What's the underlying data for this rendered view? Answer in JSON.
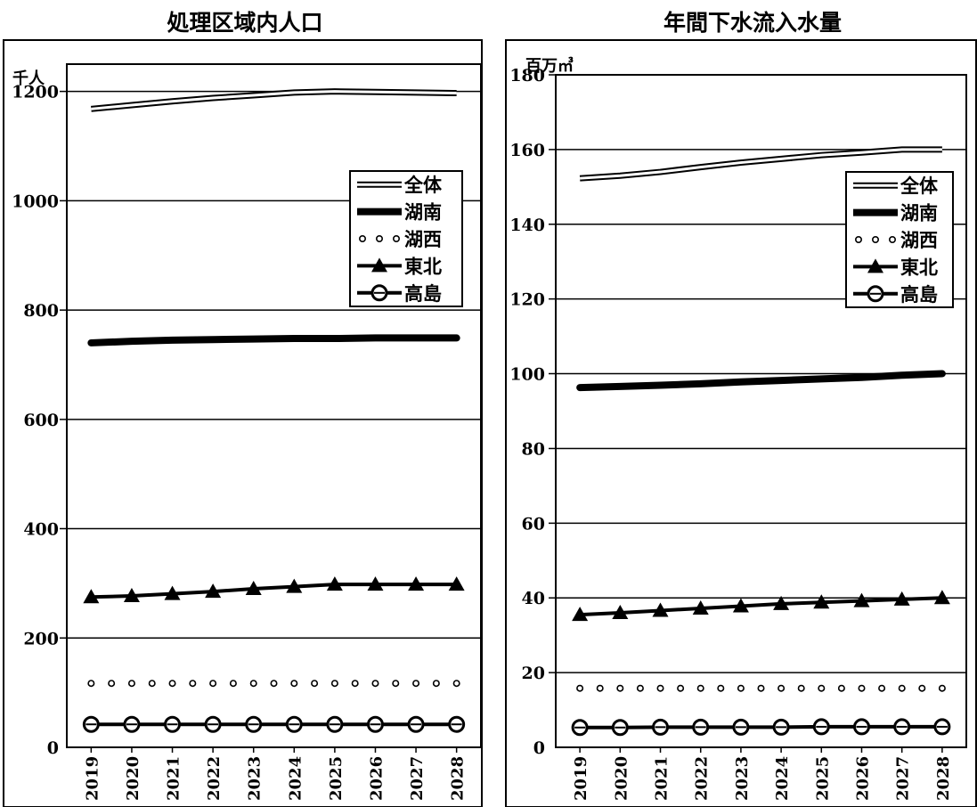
{
  "chart_data": [
    {
      "type": "line",
      "title": "処理区域内人口",
      "unit": "千人",
      "categories": [
        "2019",
        "2020",
        "2021",
        "2022",
        "2023",
        "2024",
        "2025",
        "2026",
        "2027",
        "2028"
      ],
      "ylim": [
        0,
        1250
      ],
      "yticks": [
        0,
        200,
        400,
        600,
        800,
        1000,
        1200
      ],
      "grid": true,
      "legend_position": "right",
      "series": [
        {
          "name": "全体",
          "style": "double",
          "values": [
            1168,
            1175,
            1182,
            1188,
            1193,
            1198,
            1200,
            1199,
            1198,
            1197
          ]
        },
        {
          "name": "湖南",
          "style": "thick",
          "values": [
            740,
            743,
            745,
            746,
            747,
            748,
            748,
            749,
            749,
            749
          ]
        },
        {
          "name": "湖西",
          "style": "dots",
          "values": [
            117,
            117,
            117,
            117,
            117,
            117,
            117,
            117,
            117,
            117
          ]
        },
        {
          "name": "東北",
          "style": "triangle",
          "values": [
            275,
            277,
            281,
            285,
            290,
            294,
            298,
            298,
            298,
            298
          ]
        },
        {
          "name": "高島",
          "style": "circle",
          "values": [
            42,
            42,
            42,
            42,
            42,
            42,
            42,
            42,
            42,
            42
          ]
        }
      ]
    },
    {
      "type": "line",
      "title": "年間下水流入水量",
      "unit": "百万㎥",
      "categories": [
        "2019",
        "2020",
        "2021",
        "2022",
        "2023",
        "2024",
        "2025",
        "2026",
        "2027",
        "2028"
      ],
      "ylim": [
        0,
        180
      ],
      "yticks": [
        0,
        20,
        40,
        60,
        80,
        100,
        120,
        140,
        160,
        180
      ],
      "grid": true,
      "legend_position": "right",
      "series": [
        {
          "name": "全体",
          "style": "double",
          "values": [
            152.3,
            153.0,
            154.0,
            155.3,
            156.5,
            157.5,
            158.5,
            159.2,
            160.0,
            160.0
          ]
        },
        {
          "name": "湖南",
          "style": "thick",
          "values": [
            96.3,
            96.6,
            96.9,
            97.3,
            97.8,
            98.2,
            98.6,
            99.0,
            99.6,
            100.0
          ]
        },
        {
          "name": "湖西",
          "style": "dots",
          "values": [
            15.8,
            15.8,
            15.8,
            15.8,
            15.8,
            15.8,
            15.8,
            15.8,
            15.8,
            15.8
          ]
        },
        {
          "name": "東北",
          "style": "triangle",
          "values": [
            35.5,
            36.0,
            36.6,
            37.2,
            37.8,
            38.4,
            38.8,
            39.2,
            39.6,
            40.0
          ]
        },
        {
          "name": "高島",
          "style": "circle",
          "values": [
            5.3,
            5.3,
            5.4,
            5.4,
            5.4,
            5.4,
            5.5,
            5.5,
            5.5,
            5.5
          ]
        }
      ]
    }
  ]
}
